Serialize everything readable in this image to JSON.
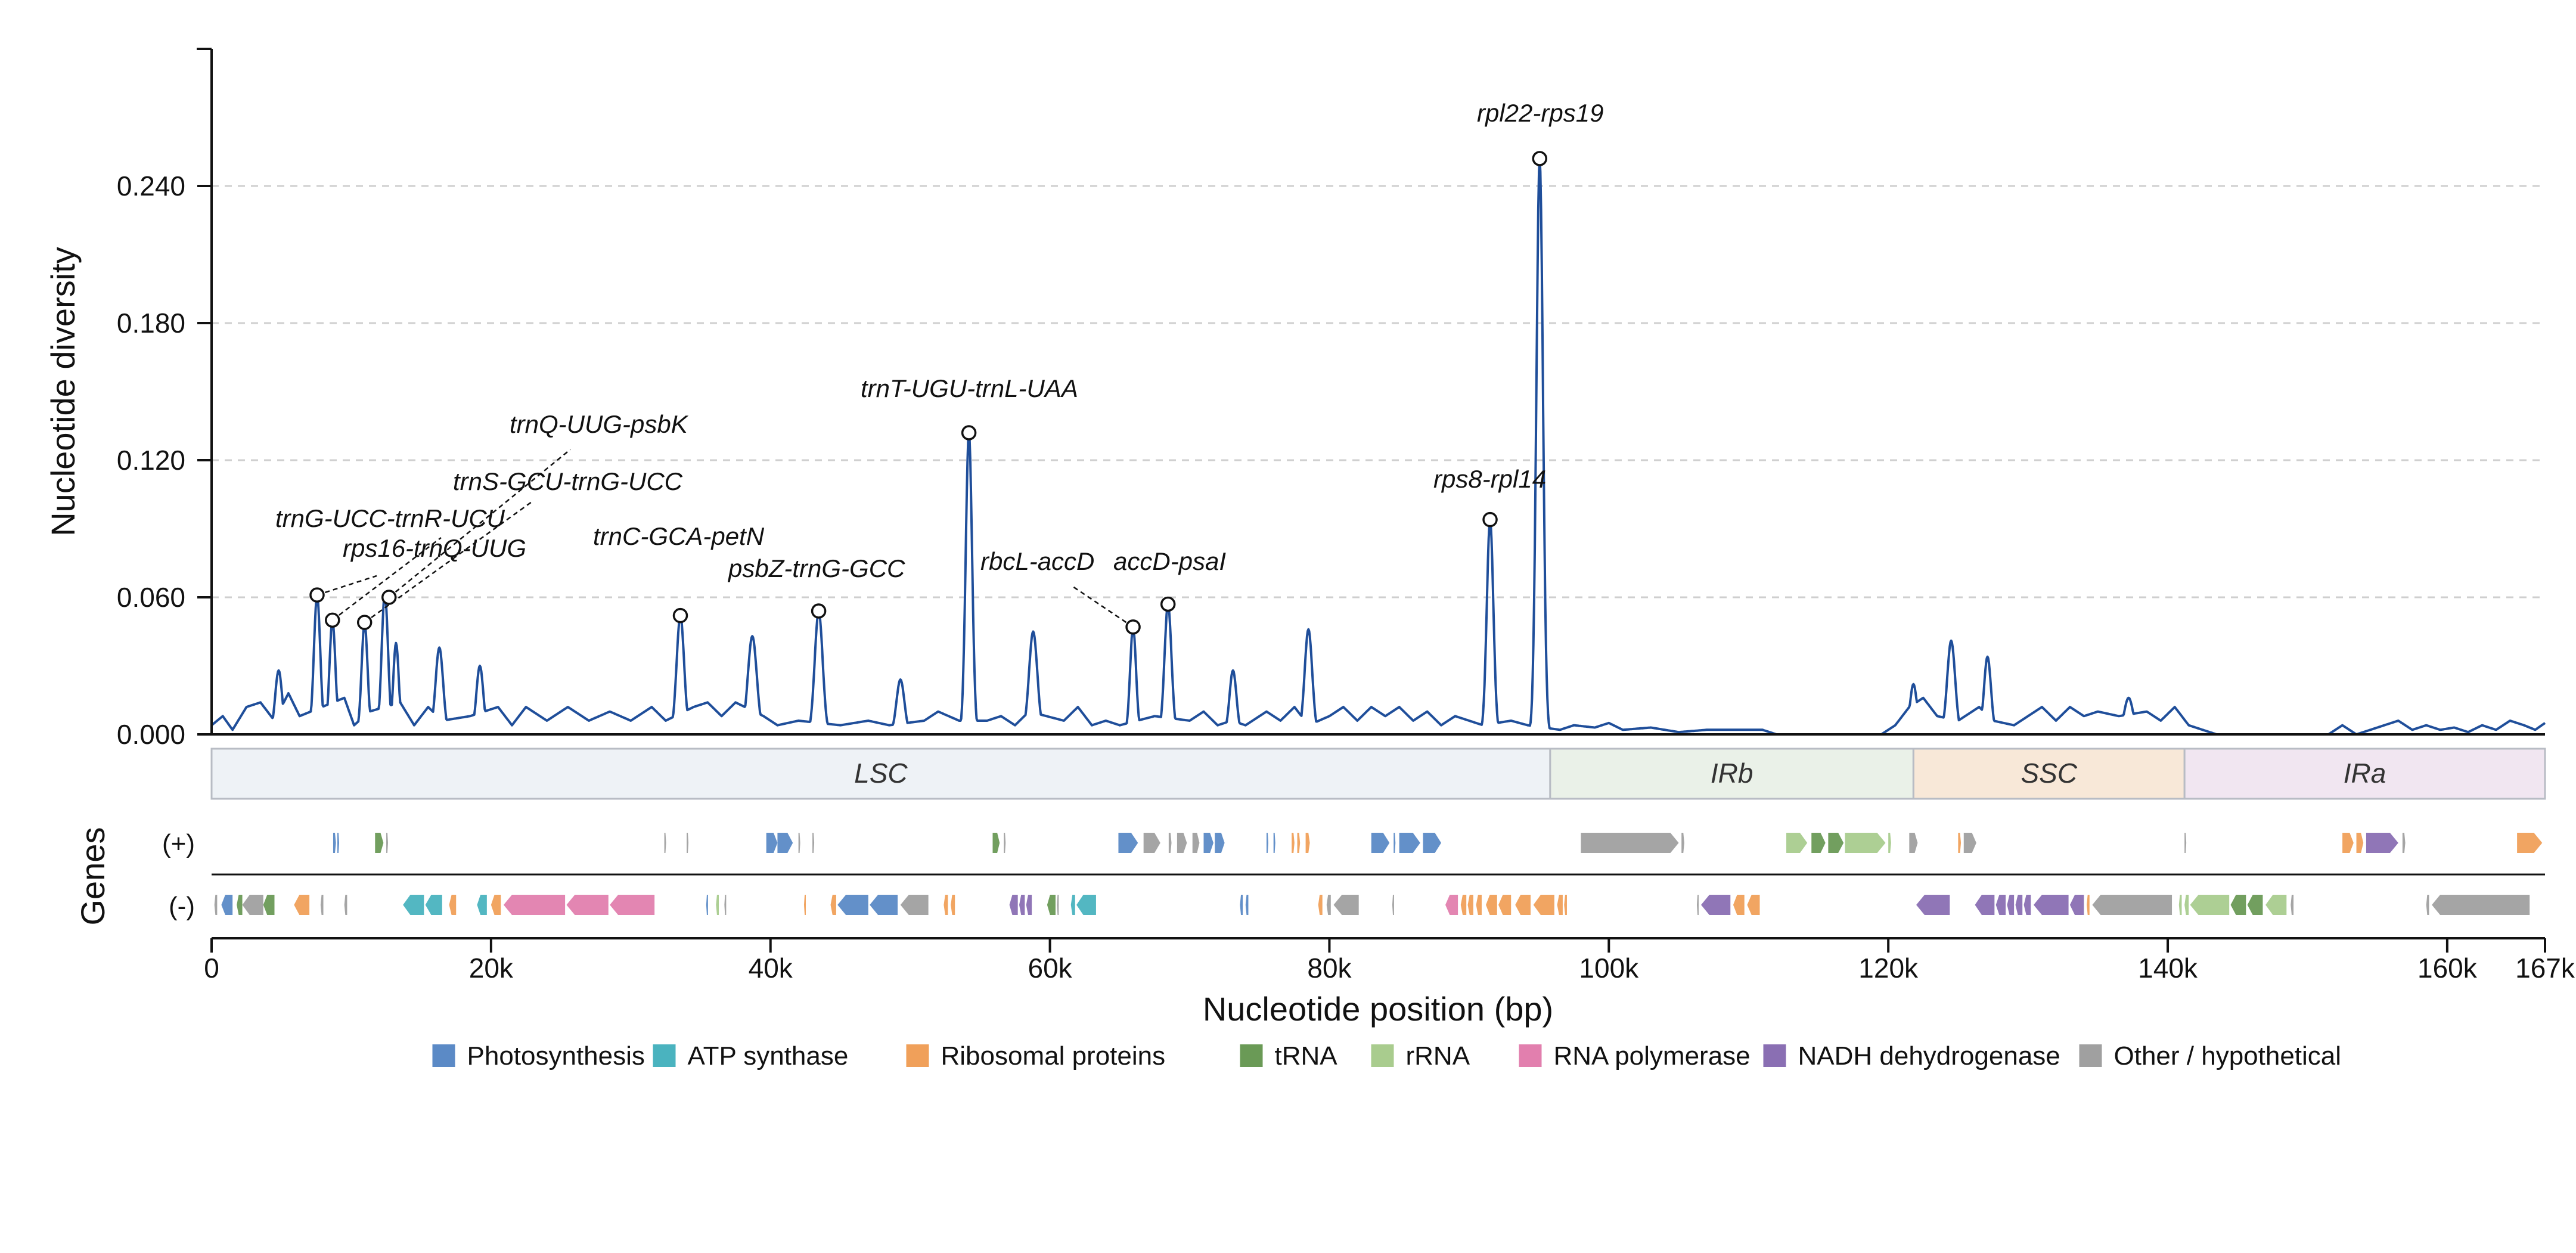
{
  "chart_data": {
    "type": "line",
    "ylabel": "Nucleotide diversity",
    "xlabel": "Nucleotide position (bp)",
    "xlim": [
      0,
      167000
    ],
    "ylim": [
      0,
      0.3
    ],
    "yticks": [
      0,
      0.06,
      0.12,
      0.18,
      0.24
    ],
    "ytick_labels": [
      "0.000",
      "0.060",
      "0.120",
      "0.180",
      "0.240"
    ],
    "xticks": [
      0,
      20000,
      40000,
      60000,
      80000,
      100000,
      120000,
      140000,
      160000,
      167000
    ],
    "xtick_labels": [
      "0",
      "20k",
      "40k",
      "60k",
      "80k",
      "100k",
      "120k",
      "140k",
      "160k",
      "167k"
    ],
    "grid": "y-dashed",
    "line_color": "#1f4e9a",
    "baseline_points": [
      [
        0,
        0.004
      ],
      [
        800,
        0.008
      ],
      [
        1500,
        0.002
      ],
      [
        2500,
        0.012
      ],
      [
        3500,
        0.014
      ],
      [
        4500,
        0.006
      ],
      [
        5500,
        0.018
      ],
      [
        6300,
        0.008
      ],
      [
        9500,
        0.016
      ],
      [
        10200,
        0.004
      ],
      [
        11300,
        0.01
      ],
      [
        13500,
        0.014
      ],
      [
        14500,
        0.004
      ],
      [
        15500,
        0.012
      ],
      [
        16500,
        0.006
      ],
      [
        18500,
        0.008
      ],
      [
        20500,
        0.012
      ],
      [
        21500,
        0.004
      ],
      [
        22500,
        0.012
      ],
      [
        24000,
        0.006
      ],
      [
        25500,
        0.012
      ],
      [
        27000,
        0.006
      ],
      [
        28500,
        0.01
      ],
      [
        30000,
        0.006
      ],
      [
        31500,
        0.012
      ],
      [
        32500,
        0.006
      ],
      [
        34500,
        0.012
      ],
      [
        35500,
        0.014
      ],
      [
        36500,
        0.008
      ],
      [
        37500,
        0.014
      ],
      [
        39500,
        0.008
      ],
      [
        40500,
        0.004
      ],
      [
        42000,
        0.006
      ],
      [
        45000,
        0.004
      ],
      [
        47000,
        0.006
      ],
      [
        48500,
        0.004
      ],
      [
        51000,
        0.006
      ],
      [
        52000,
        0.01
      ],
      [
        53500,
        0.006
      ],
      [
        55500,
        0.006
      ],
      [
        56500,
        0.008
      ],
      [
        57500,
        0.004
      ],
      [
        58500,
        0.01
      ],
      [
        61000,
        0.006
      ],
      [
        62000,
        0.012
      ],
      [
        63000,
        0.004
      ],
      [
        64000,
        0.006
      ],
      [
        65000,
        0.004
      ],
      [
        67500,
        0.008
      ],
      [
        70000,
        0.006
      ],
      [
        71000,
        0.01
      ],
      [
        72000,
        0.004
      ],
      [
        73000,
        0.006
      ],
      [
        74000,
        0.004
      ],
      [
        75500,
        0.01
      ],
      [
        76500,
        0.006
      ],
      [
        77500,
        0.012
      ],
      [
        78500,
        0.004
      ],
      [
        80000,
        0.008
      ],
      [
        81000,
        0.012
      ],
      [
        82000,
        0.006
      ],
      [
        83000,
        0.012
      ],
      [
        84000,
        0.008
      ],
      [
        85000,
        0.012
      ],
      [
        86000,
        0.006
      ],
      [
        87000,
        0.01
      ],
      [
        88000,
        0.004
      ],
      [
        89000,
        0.008
      ],
      [
        90000,
        0.006
      ],
      [
        91000,
        0.004
      ],
      [
        93000,
        0.006
      ],
      [
        94200,
        0.004
      ],
      [
        96500,
        0.002
      ],
      [
        97500,
        0.004
      ],
      [
        99000,
        0.003
      ],
      [
        100000,
        0.005
      ],
      [
        101000,
        0.002
      ],
      [
        103000,
        0.003
      ],
      [
        105000,
        0.001
      ],
      [
        107000,
        0.002
      ],
      [
        108500,
        0.002
      ],
      [
        111000,
        0.002
      ],
      [
        112000,
        0.0
      ],
      [
        119500,
        0.0
      ],
      [
        120500,
        0.004
      ],
      [
        121500,
        0.012
      ],
      [
        122500,
        0.016
      ],
      [
        123500,
        0.008
      ],
      [
        125000,
        0.006
      ],
      [
        126500,
        0.012
      ],
      [
        127500,
        0.006
      ],
      [
        129000,
        0.004
      ],
      [
        130000,
        0.008
      ],
      [
        131000,
        0.012
      ],
      [
        132000,
        0.006
      ],
      [
        133000,
        0.012
      ],
      [
        134000,
        0.008
      ],
      [
        135000,
        0.01
      ],
      [
        136500,
        0.008
      ],
      [
        138500,
        0.01
      ],
      [
        139500,
        0.006
      ],
      [
        140500,
        0.012
      ],
      [
        141500,
        0.004
      ],
      [
        142500,
        0.002
      ],
      [
        143500,
        0.0
      ],
      [
        151500,
        0.0
      ],
      [
        152500,
        0.004
      ],
      [
        153500,
        0.0
      ],
      [
        155000,
        0.003
      ],
      [
        156500,
        0.006
      ],
      [
        157500,
        0.002
      ],
      [
        158500,
        0.004
      ],
      [
        159500,
        0.002
      ],
      [
        160500,
        0.003
      ],
      [
        161500,
        0.001
      ],
      [
        162500,
        0.004
      ],
      [
        163500,
        0.002
      ],
      [
        164500,
        0.006
      ],
      [
        165500,
        0.004
      ],
      [
        166300,
        0.002
      ],
      [
        167000,
        0.005
      ]
    ],
    "peaks": [
      [
        4800,
        0.028,
        350
      ],
      [
        5400,
        0.015,
        300
      ],
      [
        7550,
        0.061,
        320
      ],
      [
        8650,
        0.05,
        300
      ],
      [
        10950,
        0.049,
        300
      ],
      [
        12400,
        0.062,
        320
      ],
      [
        13200,
        0.04,
        280
      ],
      [
        16300,
        0.038,
        380
      ],
      [
        19200,
        0.03,
        350
      ],
      [
        33550,
        0.052,
        380
      ],
      [
        38700,
        0.043,
        450
      ],
      [
        43450,
        0.054,
        400
      ],
      [
        49300,
        0.024,
        400
      ],
      [
        54200,
        0.132,
        320
      ],
      [
        58800,
        0.045,
        420
      ],
      [
        65950,
        0.047,
        300
      ],
      [
        68450,
        0.057,
        350
      ],
      [
        73100,
        0.028,
        350
      ],
      [
        78500,
        0.046,
        380
      ],
      [
        91500,
        0.094,
        330
      ],
      [
        95050,
        0.252,
        330
      ],
      [
        121800,
        0.022,
        350
      ],
      [
        124500,
        0.041,
        400
      ],
      [
        127100,
        0.034,
        350
      ],
      [
        137200,
        0.016,
        450
      ]
    ],
    "annotations": [
      {
        "label": "trnG-UCC-trnR-UCU",
        "x": 7550,
        "y": 0.061
      },
      {
        "label": "rps16-trnQ-UUG",
        "x": 8650,
        "y": 0.05
      },
      {
        "label": "trnS-GCU-trnG-UCC",
        "x": 10950,
        "y": 0.049
      },
      {
        "label": "trnQ-UUG-psbK",
        "x": 12700,
        "y": 0.06
      },
      {
        "label": "trnC-GCA-petN",
        "x": 33550,
        "y": 0.052
      },
      {
        "label": "psbZ-trnG-GCC",
        "x": 43450,
        "y": 0.054
      },
      {
        "label": "trnT-UGU-trnL-UAA",
        "x": 54200,
        "y": 0.132
      },
      {
        "label": "rbcL-accD",
        "x": 65950,
        "y": 0.047
      },
      {
        "label": "accD-psaI",
        "x": 68450,
        "y": 0.057
      },
      {
        "label": "rps8-rpl14",
        "x": 91500,
        "y": 0.094
      },
      {
        "label": "rpl22-rps19",
        "x": 95050,
        "y": 0.252
      }
    ],
    "regions": [
      {
        "label": "LSC",
        "start": 0,
        "end": 95800,
        "color": "#eef2f6"
      },
      {
        "label": "IRb",
        "start": 95800,
        "end": 121800,
        "color": "#eaf1e8"
      },
      {
        "label": "SSC",
        "start": 121800,
        "end": 141200,
        "color": "#f8e8d8"
      },
      {
        "label": "IRa",
        "start": 141200,
        "end": 167000,
        "color": "#f1e6f1"
      }
    ],
    "genes_label": "Genes",
    "strand_labels": [
      "(+)",
      "(-)"
    ],
    "gene_categories": [
      {
        "key": "photo",
        "label": "Photosynthesis",
        "color": "#5b8ac6"
      },
      {
        "key": "atp",
        "label": "ATP synthase",
        "color": "#4ab3bf"
      },
      {
        "key": "ribo",
        "label": "Ribosomal proteins",
        "color": "#f0a05a"
      },
      {
        "key": "trna",
        "label": "tRNA",
        "color": "#6a9a56"
      },
      {
        "key": "rrna",
        "label": "rRNA",
        "color": "#a9cc8e"
      },
      {
        "key": "rnap",
        "label": "RNA polymerase",
        "color": "#e27fae"
      },
      {
        "key": "ndh",
        "label": "NADH dehydrogenase",
        "color": "#8a6fb3"
      },
      {
        "key": "other",
        "label": "Other / hypothetical",
        "color": "#a0a0a0"
      }
    ],
    "genes_plus": [
      [
        "photo",
        8700,
        8900
      ],
      [
        "photo",
        9000,
        9100
      ],
      [
        "trna",
        11700,
        12300
      ],
      [
        "other",
        12500,
        12600
      ],
      [
        "other",
        32400,
        32500
      ],
      [
        "other",
        34000,
        34100
      ],
      [
        "photo",
        39700,
        40500
      ],
      [
        "photo",
        40500,
        41600
      ],
      [
        "other",
        42000,
        42100
      ],
      [
        "other",
        43000,
        43100
      ],
      [
        "trna",
        55900,
        56400
      ],
      [
        "other",
        56700,
        56800
      ],
      [
        "photo",
        64900,
        66300
      ],
      [
        "other",
        66700,
        67900
      ],
      [
        "other",
        68500,
        68700
      ],
      [
        "other",
        69100,
        69800
      ],
      [
        "other",
        70200,
        70700
      ],
      [
        "photo",
        71000,
        71700
      ],
      [
        "photo",
        71800,
        72500
      ],
      [
        "photo",
        75500,
        75600
      ],
      [
        "photo",
        76000,
        76100
      ],
      [
        "ribo",
        77300,
        77500
      ],
      [
        "ribo",
        77700,
        77900
      ],
      [
        "ribo",
        78300,
        78600
      ],
      [
        "photo",
        83000,
        84300
      ],
      [
        "photo",
        84600,
        84700
      ],
      [
        "photo",
        85000,
        86500
      ],
      [
        "photo",
        86700,
        88000
      ],
      [
        "other",
        98000,
        105000
      ],
      [
        "other",
        105200,
        105400
      ],
      [
        "rrna",
        112700,
        114200
      ],
      [
        "trna",
        114500,
        115500
      ],
      [
        "trna",
        115700,
        116800
      ],
      [
        "rrna",
        116900,
        119800
      ],
      [
        "rrna",
        120000,
        120200
      ],
      [
        "other",
        121500,
        122100
      ],
      [
        "ribo",
        125000,
        125200
      ],
      [
        "other",
        125400,
        126300
      ],
      [
        "other",
        141200,
        141300
      ],
      [
        "ribo",
        152500,
        153300
      ],
      [
        "ribo",
        153500,
        154000
      ],
      [
        "ndh",
        154200,
        156500
      ],
      [
        "other",
        156800,
        157000
      ],
      [
        "ribo",
        165000,
        166800
      ]
    ],
    "genes_minus": [
      [
        "other",
        200,
        400
      ],
      [
        "photo",
        700,
        1500
      ],
      [
        "trna",
        1800,
        2200
      ],
      [
        "other",
        2200,
        3700
      ],
      [
        "trna",
        3700,
        4500
      ],
      [
        "ribo",
        5900,
        7000
      ],
      [
        "other",
        7800,
        8000
      ],
      [
        "other",
        9500,
        9700
      ],
      [
        "atp",
        13700,
        15200
      ],
      [
        "atp",
        15300,
        16500
      ],
      [
        "ribo",
        17000,
        17500
      ],
      [
        "atp",
        19000,
        19700
      ],
      [
        "ribo",
        20000,
        20700
      ],
      [
        "rnap",
        20900,
        25300
      ],
      [
        "rnap",
        25400,
        28400
      ],
      [
        "rnap",
        28500,
        31700
      ],
      [
        "photo",
        35400,
        35500
      ],
      [
        "rrna",
        36100,
        36300
      ],
      [
        "other",
        36700,
        36800
      ],
      [
        "ribo",
        42400,
        42500
      ],
      [
        "ribo",
        44300,
        44700
      ],
      [
        "photo",
        44800,
        47000
      ],
      [
        "photo",
        47100,
        49100
      ],
      [
        "other",
        49300,
        51300
      ],
      [
        "ribo",
        52400,
        52700
      ],
      [
        "ribo",
        52900,
        53200
      ],
      [
        "ndh",
        57100,
        57700
      ],
      [
        "ndh",
        57800,
        58200
      ],
      [
        "ndh",
        58300,
        58700
      ],
      [
        "trna",
        59800,
        60400
      ],
      [
        "other",
        60500,
        60600
      ],
      [
        "atp",
        61500,
        61800
      ],
      [
        "atp",
        61900,
        63300
      ],
      [
        "photo",
        73600,
        73800
      ],
      [
        "photo",
        74000,
        74200
      ],
      [
        "ribo",
        79200,
        79500
      ],
      [
        "other",
        79800,
        80100
      ],
      [
        "other",
        80300,
        82100
      ],
      [
        "other",
        84500,
        84600
      ],
      [
        "rnap",
        88300,
        89200
      ],
      [
        "ribo",
        89400,
        89800
      ],
      [
        "ribo",
        89900,
        90300
      ],
      [
        "ribo",
        90500,
        90900
      ],
      [
        "ribo",
        91200,
        92000
      ],
      [
        "ribo",
        92100,
        93000
      ],
      [
        "ribo",
        93300,
        94400
      ],
      [
        "ribo",
        94600,
        96100
      ],
      [
        "ribo",
        96300,
        96700
      ],
      [
        "ribo",
        96800,
        97000
      ],
      [
        "other",
        106300,
        106400
      ],
      [
        "ndh",
        106600,
        108700
      ],
      [
        "ribo",
        108900,
        109700
      ],
      [
        "ribo",
        109900,
        110800
      ],
      [
        "ndh",
        122000,
        124400
      ],
      [
        "ndh",
        126200,
        127600
      ],
      [
        "ndh",
        127700,
        128400
      ],
      [
        "ndh",
        128500,
        129000
      ],
      [
        "ndh",
        129100,
        129600
      ],
      [
        "ndh",
        129700,
        130200
      ],
      [
        "ndh",
        130400,
        132900
      ],
      [
        "ndh",
        133000,
        134000
      ],
      [
        "ribo",
        134200,
        134400
      ],
      [
        "other",
        134600,
        140300
      ],
      [
        "rrna",
        140800,
        141000
      ],
      [
        "rrna",
        141200,
        141500
      ],
      [
        "rrna",
        141600,
        144400
      ],
      [
        "trna",
        144500,
        145600
      ],
      [
        "trna",
        145700,
        146800
      ],
      [
        "rrna",
        147000,
        148500
      ],
      [
        "other",
        148800,
        149000
      ],
      [
        "other",
        158500,
        158700
      ],
      [
        "other",
        158900,
        165900
      ]
    ]
  }
}
